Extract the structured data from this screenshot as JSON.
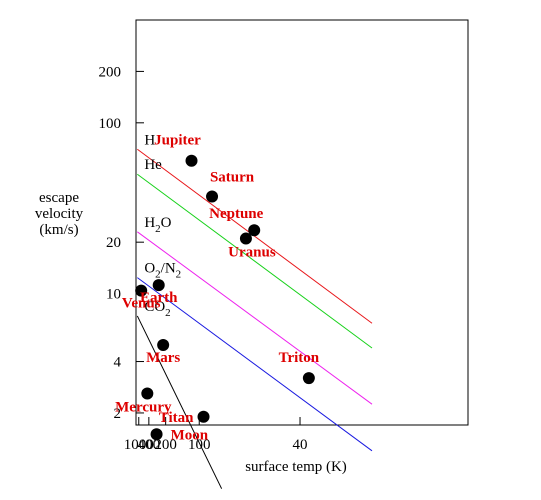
{
  "chart_data": {
    "type": "scatter",
    "title": "",
    "xlabel": "surface temp (K)",
    "ylabel": [
      "escape",
      "velocity",
      "(km/s)"
    ],
    "x_scale": "reciprocal",
    "y_scale": "log",
    "xlim": [
      1700,
      20
    ],
    "ylim": [
      1.7,
      400
    ],
    "x_ticks": [
      {
        "value": 1000,
        "label": "1000"
      },
      {
        "value": 400,
        "label": "400"
      },
      {
        "value": 200,
        "label": "200"
      },
      {
        "value": 100,
        "label": "100"
      },
      {
        "value": 40,
        "label": "40"
      }
    ],
    "y_ticks": [
      {
        "value": 2,
        "label": "2"
      },
      {
        "value": 4,
        "label": "4"
      },
      {
        "value": 10,
        "label": "10"
      },
      {
        "value": 20,
        "label": "20"
      },
      {
        "value": 100,
        "label": "100"
      },
      {
        "value": 200,
        "label": "200"
      }
    ],
    "points": [
      {
        "name": "Jupiter",
        "x": 113,
        "y": 60,
        "label_dx": -14,
        "label_dy": -16,
        "anchor": "middle"
      },
      {
        "name": "Saturn",
        "x": 84,
        "y": 37,
        "label_dx": 20,
        "label_dy": -15,
        "anchor": "middle"
      },
      {
        "name": "Neptune",
        "x": 55,
        "y": 23.5,
        "label_dx": -18,
        "label_dy": -12,
        "anchor": "middle"
      },
      {
        "name": "Uranus",
        "x": 59,
        "y": 21,
        "label_dx": 6,
        "label_dy": 18,
        "anchor": "middle"
      },
      {
        "name": "Earth",
        "x": 252,
        "y": 11.2,
        "label_dx": 0,
        "label_dy": 17,
        "anchor": "middle"
      },
      {
        "name": "Venus",
        "x": 735,
        "y": 10.4,
        "label_dx": 0,
        "label_dy": 17,
        "anchor": "middle"
      },
      {
        "name": "Mars",
        "x": 216,
        "y": 5,
        "label_dx": 0,
        "label_dy": 17,
        "anchor": "middle"
      },
      {
        "name": "Triton",
        "x": 38,
        "y": 3.2,
        "label_dx": -10,
        "label_dy": -16,
        "anchor": "middle"
      },
      {
        "name": "Mercury",
        "x": 440,
        "y": 2.6,
        "label_dx": -4,
        "label_dy": 18,
        "anchor": "middle"
      },
      {
        "name": "Titan",
        "x": 94,
        "y": 1.9,
        "label_dx": -10,
        "label_dy": 5,
        "anchor": "end"
      },
      {
        "name": "Moon",
        "x": 274,
        "y": 1.5,
        "label_dx": 14,
        "label_dy": 5,
        "anchor": "start"
      }
    ],
    "lines": [
      {
        "name": "H",
        "color": "#e8161a",
        "x1": 1270,
        "y1": 70,
        "x2": 28,
        "y2": 6.7
      },
      {
        "name": "He",
        "color": "#17d11a",
        "x1": 1270,
        "y1": 50,
        "x2": 28,
        "y2": 4.8
      },
      {
        "name": "H2O",
        "label_main": "H",
        "label_sub": "2",
        "label_tail": "O",
        "color": "#ee22ee",
        "x1": 1270,
        "y1": 23,
        "x2": 28,
        "y2": 2.25
      },
      {
        "name": "O2/N2",
        "label_main": "O",
        "label_sub": "2",
        "label_tail": "/N",
        "label_sub2": "2",
        "color": "#1a1ae0",
        "x1": 1270,
        "y1": 12.4,
        "x2": 28,
        "y2": 1.2
      },
      {
        "name": "CO2",
        "label_main": "CO",
        "label_sub": "2",
        "label_tail": "",
        "color": "#000000",
        "x1": 1270,
        "y1": 7.4,
        "x2": 75,
        "y2": 0.72
      }
    ],
    "colors": {
      "point": "#000000",
      "point_label": "#dd0000",
      "axis": "#000000",
      "text": "#000000"
    },
    "grid": false,
    "legend": "none"
  }
}
